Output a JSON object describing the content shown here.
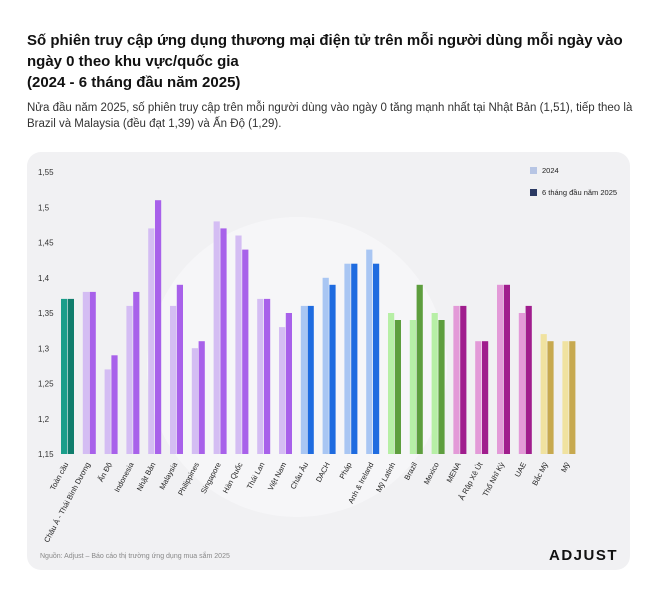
{
  "header": {
    "title": "Số phiên truy cập ứng dụng thương mại điện tử trên mỗi người dùng mỗi ngày vào ngày 0 theo khu vực/quốc gia\n(2024 - 6 tháng đầu năm 2025)",
    "subtitle": "Nửa đầu năm 2025, số phiên truy cập trên mỗi người dùng vào ngày 0 tăng mạnh nhất tại Nhật Bản (1,51), tiếp theo là Brazil và Malaysia (đều đạt 1,39) và Ấn Độ (1,29)."
  },
  "footer": {
    "source": "Nguồn: Adjust – Báo cáo thị trường ứng dụng mua sắm 2025",
    "logo": "ADJUST"
  },
  "legend": {
    "items": [
      {
        "label": "2024",
        "color": "#b7c5e4"
      },
      {
        "label": "6 tháng đầu năm 2025",
        "color": "#2b3a63"
      }
    ]
  },
  "chart_data": {
    "type": "bar",
    "title": "",
    "xlabel": "",
    "ylabel": "",
    "ylim": [
      1.15,
      1.55
    ],
    "yticks": [
      "1,15",
      "1,2",
      "1,25",
      "1,3",
      "1,35",
      "1,4",
      "1,45",
      "1,5",
      "1,55"
    ],
    "grid": false,
    "legend_position": "top-right",
    "categories": [
      "Toàn cầu",
      "Châu Á - Thái Bình Dương",
      "Ấn Độ",
      "Indonesia",
      "Nhật Bản",
      "Malaysia",
      "Philippines",
      "Singapore",
      "Hàn Quốc",
      "Thái Lan",
      "Việt Nam",
      "Châu Âu",
      "DACH",
      "Pháp",
      "Anh & Ireland",
      "Mỹ Latinh",
      "Brazil",
      "Mexico",
      "MENA",
      "Ả Rập Xê Út",
      "Thổ Nhĩ Kỳ",
      "UAE",
      "Bắc Mỹ",
      "Mỹ"
    ],
    "series": [
      {
        "name": "2024",
        "values": [
          1.37,
          1.38,
          1.27,
          1.36,
          1.47,
          1.36,
          1.3,
          1.48,
          1.46,
          1.37,
          1.33,
          1.36,
          1.4,
          1.42,
          1.44,
          1.35,
          1.34,
          1.35,
          1.36,
          1.31,
          1.39,
          1.35,
          1.32,
          1.31
        ]
      },
      {
        "name": "6 tháng đầu năm 2025",
        "values": [
          1.37,
          1.38,
          1.29,
          1.38,
          1.51,
          1.39,
          1.31,
          1.47,
          1.44,
          1.37,
          1.35,
          1.36,
          1.39,
          1.42,
          1.42,
          1.34,
          1.39,
          1.34,
          1.36,
          1.31,
          1.39,
          1.36,
          1.31,
          1.31
        ]
      }
    ],
    "colors_2024": [
      "#1a9e8a",
      "#d4bdf3",
      "#d4bdf3",
      "#d4bdf3",
      "#d4bdf3",
      "#d4bdf3",
      "#d4bdf3",
      "#d4bdf3",
      "#d4bdf3",
      "#d4bdf3",
      "#d4bdf3",
      "#a9c6f3",
      "#a9c6f3",
      "#a9c6f3",
      "#a9c6f3",
      "#b7efa6",
      "#b7efa6",
      "#b7efa6",
      "#e39ad8",
      "#e39ad8",
      "#e39ad8",
      "#e39ad8",
      "#f0e2a0",
      "#f0e2a0"
    ],
    "colors_2025": [
      "#107d6c",
      "#a861ea",
      "#a861ea",
      "#a861ea",
      "#a861ea",
      "#a861ea",
      "#a861ea",
      "#a861ea",
      "#a861ea",
      "#a861ea",
      "#a861ea",
      "#1e6be0",
      "#1e6be0",
      "#1e6be0",
      "#1e6be0",
      "#5e9e3e",
      "#5e9e3e",
      "#5e9e3e",
      "#a01d8d",
      "#a01d8d",
      "#a01d8d",
      "#a01d8d",
      "#c7a94f",
      "#c7a94f"
    ]
  }
}
